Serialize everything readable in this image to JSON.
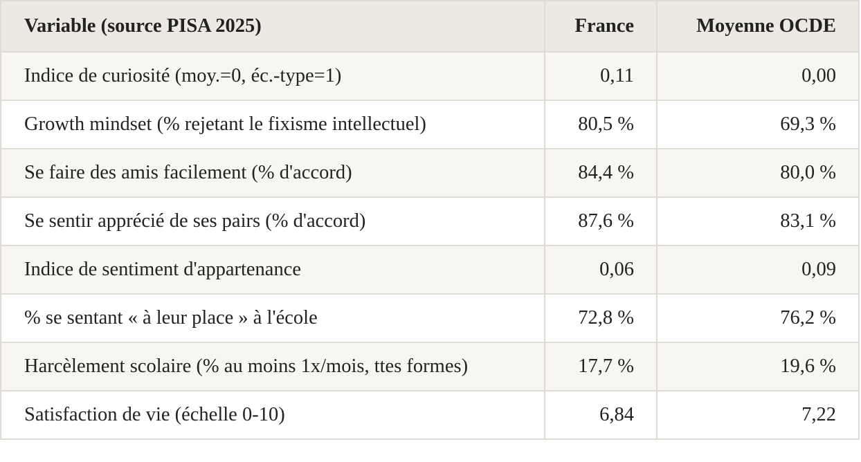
{
  "table": {
    "headers": [
      "Variable (source PISA 2025)",
      "France",
      "Moyenne OCDE"
    ],
    "rows": [
      {
        "variable": "Indice de curiosité (moy.=0, éc.-type=1)",
        "france": "0,11",
        "ocde": "0,00"
      },
      {
        "variable": "Growth mindset (% rejetant le fixisme intellectuel)",
        "france": "80,5 %",
        "ocde": "69,3 %"
      },
      {
        "variable": "Se faire des amis facilement (% d'accord)",
        "france": "84,4 %",
        "ocde": "80,0 %"
      },
      {
        "variable": "Se sentir apprécié de ses pairs (% d'accord)",
        "france": "87,6 %",
        "ocde": "83,1 %"
      },
      {
        "variable": "Indice de sentiment d'appartenance",
        "france": "0,06",
        "ocde": "0,09"
      },
      {
        "variable": "% se sentant « à leur place » à l'école",
        "france": "72,8 %",
        "ocde": "76,2 %"
      },
      {
        "variable": "Harcèlement scolaire (% au moins 1x/mois, ttes formes)",
        "france": "17,7 %",
        "ocde": "19,6 %"
      },
      {
        "variable": "Satisfaction de vie (échelle 0-10)",
        "france": "6,84",
        "ocde": "7,22"
      }
    ]
  },
  "colors": {
    "header_bg": "#ece8e2",
    "odd_row_bg": "#f8f6f2",
    "even_row_bg": "#ffffff",
    "border": "#dedad4",
    "text": "#222222"
  }
}
